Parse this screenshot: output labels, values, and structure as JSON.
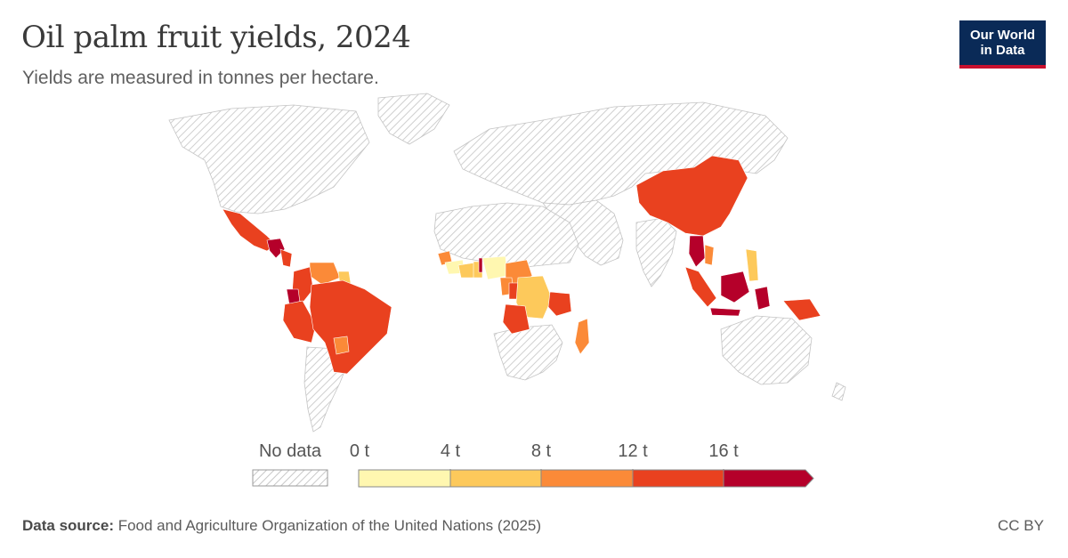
{
  "header": {
    "title": "Oil palm fruit yields, 2024",
    "subtitle": "Yields are measured in tonnes per hectare."
  },
  "logo": {
    "line1": "Our World",
    "line2": "in Data"
  },
  "legend": {
    "no_data_label": "No data",
    "bins": [
      {
        "label": "0 t",
        "color": "#fff7b0"
      },
      {
        "label": "4 t",
        "color": "#fdc95b"
      },
      {
        "label": "8 t",
        "color": "#fb8a38"
      },
      {
        "label": "12 t",
        "color": "#e9411f"
      },
      {
        "label": "16 t",
        "color": "#b5002a"
      }
    ]
  },
  "colors": {
    "no_data": "#d9d9d9",
    "border": "#bfbfbf"
  },
  "footer": {
    "source_label": "Data source:",
    "source_text": " Food and Agriculture Organization of the United Nations (2025)",
    "license": "CC BY"
  }
}
